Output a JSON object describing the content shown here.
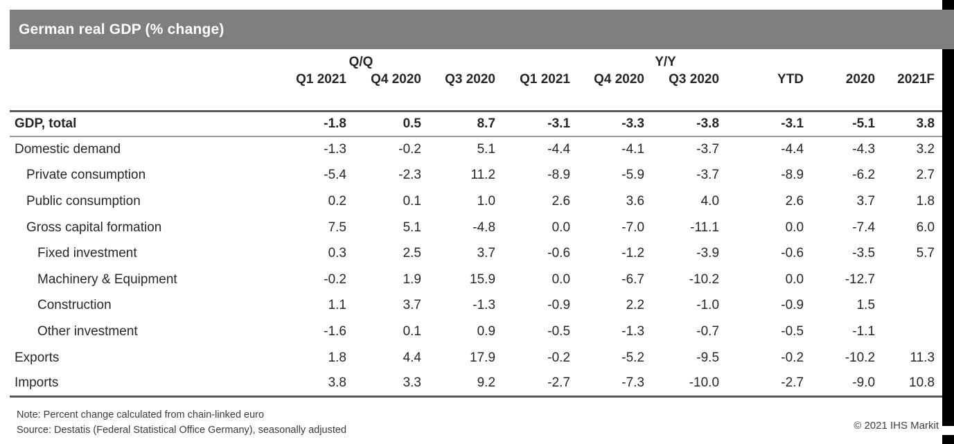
{
  "title": "German real GDP (% change)",
  "chart_data": {
    "type": "table",
    "title": "German real GDP (% change)",
    "unit": "% change",
    "column_groups": [
      {
        "label": "Q/Q",
        "span": 3
      },
      {
        "label": "Y/Y",
        "span": 3
      },
      {
        "label": "",
        "span": 3
      }
    ],
    "columns": [
      "Q1 2021",
      "Q4 2020",
      "Q3 2020",
      "Q1 2021",
      "Q4 2020",
      "Q3 2020",
      "YTD",
      "2020",
      "2021F"
    ],
    "rows": [
      {
        "label": "GDP, total",
        "indent": 0,
        "bold": true,
        "values": [
          -1.8,
          0.5,
          8.7,
          -3.1,
          -3.3,
          -3.8,
          -3.1,
          -5.1,
          3.8
        ]
      },
      {
        "label": "Domestic demand",
        "indent": 0,
        "bold": false,
        "values": [
          -1.3,
          -0.2,
          5.1,
          -4.4,
          -4.1,
          -3.7,
          -4.4,
          -4.3,
          3.2
        ]
      },
      {
        "label": "Private consumption",
        "indent": 1,
        "bold": false,
        "values": [
          -5.4,
          -2.3,
          11.2,
          -8.9,
          -5.9,
          -3.7,
          -8.9,
          -6.2,
          2.7
        ]
      },
      {
        "label": "Public consumption",
        "indent": 1,
        "bold": false,
        "values": [
          0.2,
          0.1,
          1.0,
          2.6,
          3.6,
          4.0,
          2.6,
          3.7,
          1.8
        ]
      },
      {
        "label": "Gross capital formation",
        "indent": 1,
        "bold": false,
        "values": [
          7.5,
          5.1,
          -4.8,
          0.0,
          -7.0,
          -11.1,
          0.0,
          -7.4,
          6.0
        ]
      },
      {
        "label": "Fixed investment",
        "indent": 2,
        "bold": false,
        "values": [
          0.3,
          2.5,
          3.7,
          -0.6,
          -1.2,
          -3.9,
          -0.6,
          -3.5,
          5.7
        ]
      },
      {
        "label": "Machinery & Equipment",
        "indent": 2,
        "bold": false,
        "values": [
          -0.2,
          1.9,
          15.9,
          0.0,
          -6.7,
          -10.2,
          0.0,
          -12.7,
          null
        ]
      },
      {
        "label": "Construction",
        "indent": 2,
        "bold": false,
        "values": [
          1.1,
          3.7,
          -1.3,
          -0.9,
          2.2,
          -1.0,
          -0.9,
          1.5,
          null
        ]
      },
      {
        "label": "Other investment",
        "indent": 2,
        "bold": false,
        "values": [
          -1.6,
          0.1,
          0.9,
          -0.5,
          -1.3,
          -0.7,
          -0.5,
          -1.1,
          null
        ]
      },
      {
        "label": "Exports",
        "indent": 0,
        "bold": false,
        "values": [
          1.8,
          4.4,
          17.9,
          -0.2,
          -5.2,
          -9.5,
          -0.2,
          -10.2,
          11.3
        ]
      },
      {
        "label": "Imports",
        "indent": 0,
        "bold": false,
        "values": [
          3.8,
          3.3,
          9.2,
          -2.7,
          -7.3,
          -10.0,
          -2.7,
          -9.0,
          10.8
        ]
      }
    ]
  },
  "footer": {
    "note": "Note: Percent change calculated from chain-linked euro",
    "source": "Source: Destatis (Federal Statistical Office Germany), seasonally adjusted",
    "copyright": "© 2021 IHS Markit"
  },
  "colors": {
    "title_bar": "#7f7f7f",
    "border_strong": "#595959",
    "border_light": "#999999",
    "text": "#262626",
    "edge": "#000000"
  }
}
